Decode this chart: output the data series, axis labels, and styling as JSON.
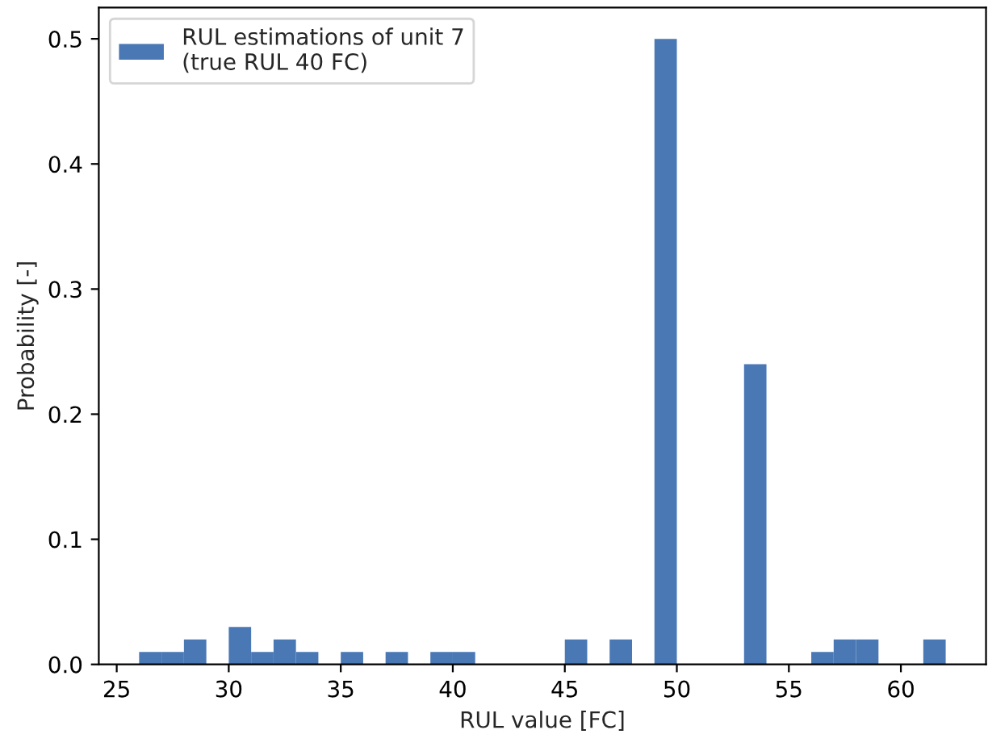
{
  "chart_data": {
    "type": "histogram",
    "xlabel": "RUL value [FC]",
    "ylabel": "Probability [-]",
    "bins": [
      26,
      27,
      28,
      29,
      30,
      31,
      32,
      33,
      34,
      35,
      36,
      37,
      38,
      39,
      40,
      41,
      42,
      43,
      44,
      45,
      46,
      47,
      48,
      49,
      50,
      51,
      52,
      53,
      54,
      55,
      56,
      57,
      58,
      59,
      60,
      61,
      62
    ],
    "series": [
      {
        "name": "RUL estimations of unit 7\n(true RUL 40 FC)",
        "color": "#4a78b5",
        "values": [
          0.01,
          0.01,
          0.02,
          0,
          0.03,
          0.01,
          0.02,
          0.01,
          0,
          0.01,
          0,
          0.01,
          0,
          0.01,
          0.01,
          0,
          0,
          0,
          0,
          0.02,
          0,
          0.02,
          0,
          0.5,
          0,
          0,
          0,
          0.24,
          0,
          0,
          0.01,
          0.02,
          0.02,
          0,
          0,
          0.02
        ]
      }
    ],
    "xlim": [
      24.2,
      63.8
    ],
    "xticks": [
      25,
      30,
      35,
      40,
      45,
      50,
      55,
      60
    ],
    "ylim": [
      0,
      0.525
    ],
    "yticks": [
      {
        "value": 0,
        "label": "0.0"
      },
      0.1,
      0.2,
      0.3,
      0.4,
      0.5
    ],
    "grid": false,
    "legend": "top left"
  }
}
